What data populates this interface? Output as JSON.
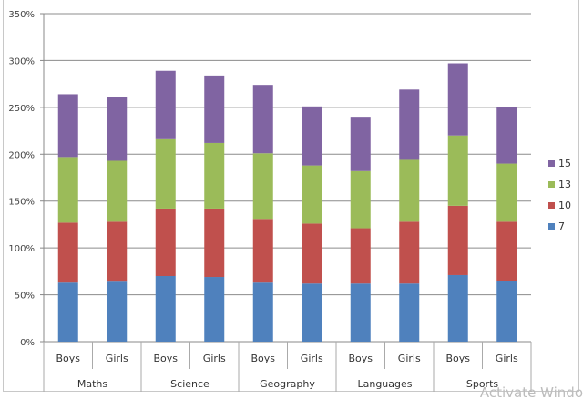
{
  "chart_data": {
    "type": "bar",
    "stacked": true,
    "title": "",
    "xlabel": "",
    "ylabel": "",
    "ylim": [
      0,
      350
    ],
    "yticks": [
      "0%",
      "50%",
      "100%",
      "150%",
      "200%",
      "250%",
      "300%",
      "350%"
    ],
    "grid": true,
    "legend_position": "right",
    "groups": [
      "Maths",
      "Science",
      "Geography",
      "Languages",
      "Sports"
    ],
    "categories": [
      "Boys",
      "Girls",
      "Boys",
      "Girls",
      "Boys",
      "Girls",
      "Boys",
      "Girls",
      "Boys",
      "Girls"
    ],
    "series": [
      {
        "name": "7",
        "color": "#4f81bd",
        "values": [
          63,
          64,
          70,
          69,
          63,
          62,
          62,
          62,
          71,
          65
        ]
      },
      {
        "name": "10",
        "color": "#c0504d",
        "values": [
          64,
          64,
          72,
          73,
          68,
          64,
          59,
          66,
          74,
          63
        ]
      },
      {
        "name": "13",
        "color": "#9bbb59",
        "values": [
          70,
          65,
          74,
          70,
          70,
          62,
          61,
          66,
          75,
          62
        ]
      },
      {
        "name": "15",
        "color": "#8064a2",
        "values": [
          67,
          68,
          73,
          72,
          73,
          63,
          58,
          75,
          77,
          60
        ]
      }
    ]
  },
  "watermark": "Activate Windo"
}
